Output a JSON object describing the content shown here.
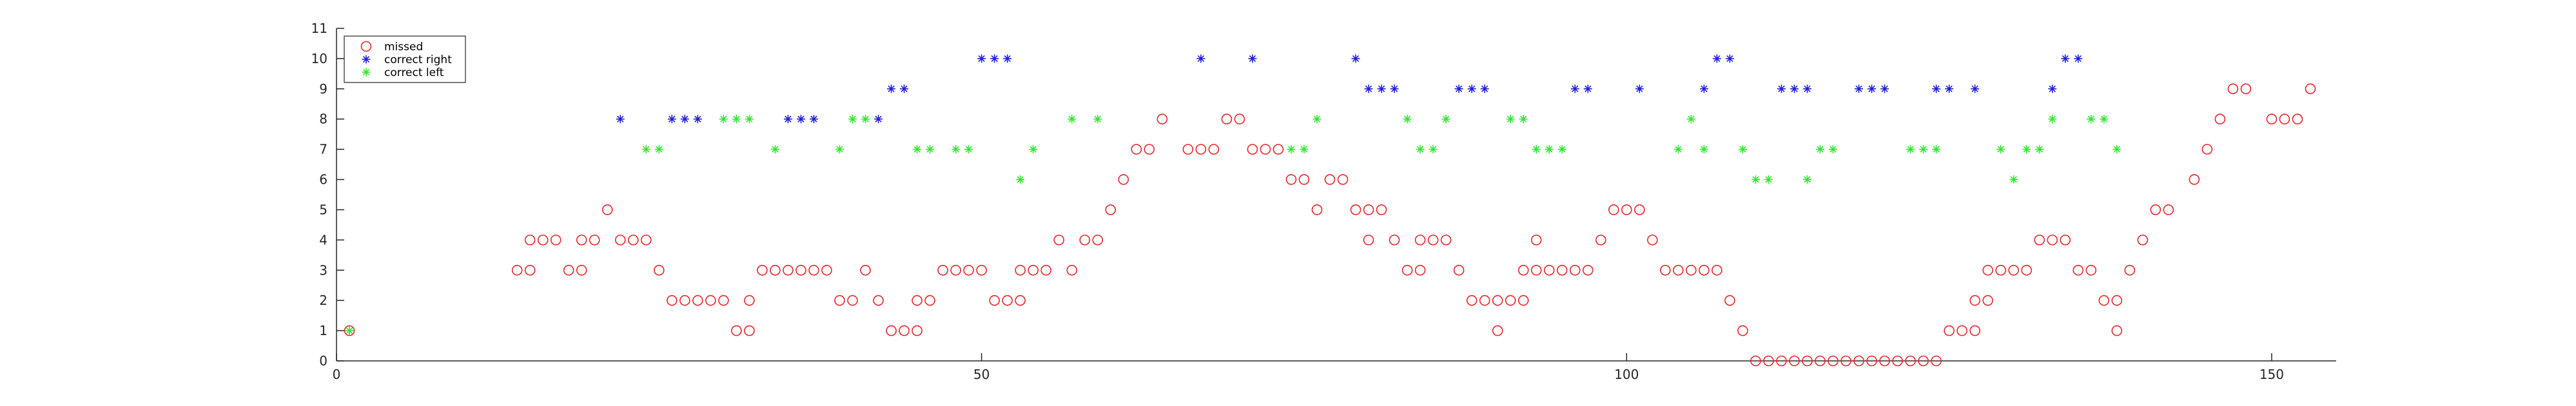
{
  "chart_data": {
    "type": "scatter",
    "title": "",
    "xlabel": "",
    "ylabel": "",
    "xlim": [
      0,
      155
    ],
    "ylim": [
      0,
      11
    ],
    "xticks": [
      0,
      50,
      100,
      150
    ],
    "yticks": [
      0,
      1,
      2,
      3,
      4,
      5,
      6,
      7,
      8,
      9,
      10,
      11
    ],
    "grid": false,
    "legend_position": "top-left",
    "series": [
      {
        "name": "missed",
        "marker": "circle-open",
        "color": "#e8242b",
        "points": [
          [
            1,
            1
          ],
          [
            14,
            3
          ],
          [
            15,
            3
          ],
          [
            15,
            4
          ],
          [
            16,
            4
          ],
          [
            17,
            4
          ],
          [
            18,
            3
          ],
          [
            19,
            3
          ],
          [
            19,
            4
          ],
          [
            20,
            4
          ],
          [
            21,
            5
          ],
          [
            22,
            4
          ],
          [
            23,
            4
          ],
          [
            24,
            4
          ],
          [
            25,
            3
          ],
          [
            26,
            2
          ],
          [
            27,
            2
          ],
          [
            28,
            2
          ],
          [
            29,
            2
          ],
          [
            30,
            2
          ],
          [
            31,
            1
          ],
          [
            32,
            1
          ],
          [
            32,
            2
          ],
          [
            33,
            3
          ],
          [
            34,
            3
          ],
          [
            35,
            3
          ],
          [
            36,
            3
          ],
          [
            37,
            3
          ],
          [
            38,
            3
          ],
          [
            39,
            2
          ],
          [
            40,
            2
          ],
          [
            41,
            3
          ],
          [
            42,
            2
          ],
          [
            43,
            1
          ],
          [
            44,
            1
          ],
          [
            45,
            1
          ],
          [
            45,
            2
          ],
          [
            46,
            2
          ],
          [
            47,
            3
          ],
          [
            48,
            3
          ],
          [
            49,
            3
          ],
          [
            50,
            3
          ],
          [
            51,
            2
          ],
          [
            52,
            2
          ],
          [
            53,
            2
          ],
          [
            53,
            3
          ],
          [
            54,
            3
          ],
          [
            55,
            3
          ],
          [
            56,
            4
          ],
          [
            57,
            3
          ],
          [
            58,
            4
          ],
          [
            59,
            4
          ],
          [
            60,
            5
          ],
          [
            61,
            6
          ],
          [
            62,
            7
          ],
          [
            63,
            7
          ],
          [
            64,
            8
          ],
          [
            66,
            7
          ],
          [
            67,
            7
          ],
          [
            68,
            7
          ],
          [
            69,
            8
          ],
          [
            70,
            8
          ],
          [
            71,
            7
          ],
          [
            72,
            7
          ],
          [
            73,
            7
          ],
          [
            74,
            6
          ],
          [
            75,
            6
          ],
          [
            76,
            5
          ],
          [
            77,
            6
          ],
          [
            78,
            6
          ],
          [
            79,
            5
          ],
          [
            80,
            4
          ],
          [
            80,
            5
          ],
          [
            81,
            5
          ],
          [
            82,
            4
          ],
          [
            83,
            3
          ],
          [
            84,
            3
          ],
          [
            84,
            4
          ],
          [
            85,
            4
          ],
          [
            86,
            4
          ],
          [
            87,
            3
          ],
          [
            88,
            2
          ],
          [
            89,
            2
          ],
          [
            90,
            1
          ],
          [
            90,
            2
          ],
          [
            91,
            2
          ],
          [
            92,
            2
          ],
          [
            92,
            3
          ],
          [
            93,
            3
          ],
          [
            93,
            4
          ],
          [
            94,
            3
          ],
          [
            95,
            3
          ],
          [
            96,
            3
          ],
          [
            97,
            3
          ],
          [
            98,
            4
          ],
          [
            99,
            5
          ],
          [
            100,
            5
          ],
          [
            101,
            5
          ],
          [
            102,
            4
          ],
          [
            103,
            3
          ],
          [
            104,
            3
          ],
          [
            105,
            3
          ],
          [
            106,
            3
          ],
          [
            107,
            3
          ],
          [
            108,
            2
          ],
          [
            109,
            1
          ],
          [
            110,
            0
          ],
          [
            111,
            0
          ],
          [
            112,
            0
          ],
          [
            113,
            0
          ],
          [
            114,
            0
          ],
          [
            115,
            0
          ],
          [
            116,
            0
          ],
          [
            117,
            0
          ],
          [
            118,
            0
          ],
          [
            119,
            0
          ],
          [
            120,
            0
          ],
          [
            121,
            0
          ],
          [
            122,
            0
          ],
          [
            123,
            0
          ],
          [
            124,
            0
          ],
          [
            125,
            1
          ],
          [
            126,
            1
          ],
          [
            127,
            1
          ],
          [
            127,
            2
          ],
          [
            128,
            2
          ],
          [
            128,
            3
          ],
          [
            129,
            3
          ],
          [
            130,
            3
          ],
          [
            131,
            3
          ],
          [
            132,
            4
          ],
          [
            133,
            4
          ],
          [
            134,
            4
          ],
          [
            135,
            3
          ],
          [
            136,
            3
          ],
          [
            137,
            2
          ],
          [
            138,
            1
          ],
          [
            138,
            2
          ],
          [
            139,
            3
          ],
          [
            140,
            4
          ],
          [
            141,
            5
          ],
          [
            142,
            5
          ],
          [
            144,
            6
          ],
          [
            145,
            7
          ],
          [
            146,
            8
          ],
          [
            147,
            9
          ],
          [
            148,
            9
          ],
          [
            150,
            8
          ],
          [
            151,
            8
          ],
          [
            152,
            8
          ],
          [
            153,
            9
          ]
        ]
      },
      {
        "name": "correct right",
        "marker": "asterisk",
        "color": "#1f1fd8",
        "points": [
          [
            22,
            8
          ],
          [
            26,
            8
          ],
          [
            27,
            8
          ],
          [
            28,
            8
          ],
          [
            35,
            8
          ],
          [
            36,
            8
          ],
          [
            37,
            8
          ],
          [
            42,
            8
          ],
          [
            43,
            9
          ],
          [
            44,
            9
          ],
          [
            50,
            10
          ],
          [
            51,
            10
          ],
          [
            52,
            10
          ],
          [
            67,
            10
          ],
          [
            71,
            10
          ],
          [
            79,
            10
          ],
          [
            80,
            9
          ],
          [
            81,
            9
          ],
          [
            82,
            9
          ],
          [
            87,
            9
          ],
          [
            88,
            9
          ],
          [
            89,
            9
          ],
          [
            96,
            9
          ],
          [
            97,
            9
          ],
          [
            101,
            9
          ],
          [
            106,
            9
          ],
          [
            107,
            10
          ],
          [
            108,
            10
          ],
          [
            112,
            9
          ],
          [
            113,
            9
          ],
          [
            114,
            9
          ],
          [
            118,
            9
          ],
          [
            119,
            9
          ],
          [
            120,
            9
          ],
          [
            124,
            9
          ],
          [
            125,
            9
          ],
          [
            127,
            9
          ],
          [
            133,
            9
          ],
          [
            134,
            10
          ],
          [
            135,
            10
          ]
        ]
      },
      {
        "name": "correct left",
        "marker": "asterisk",
        "color": "#2ee82e",
        "points": [
          [
            1,
            1
          ],
          [
            24,
            7
          ],
          [
            25,
            7
          ],
          [
            30,
            8
          ],
          [
            31,
            8
          ],
          [
            32,
            8
          ],
          [
            34,
            7
          ],
          [
            39,
            7
          ],
          [
            40,
            8
          ],
          [
            41,
            8
          ],
          [
            45,
            7
          ],
          [
            46,
            7
          ],
          [
            48,
            7
          ],
          [
            49,
            7
          ],
          [
            53,
            6
          ],
          [
            54,
            7
          ],
          [
            57,
            8
          ],
          [
            59,
            8
          ],
          [
            74,
            7
          ],
          [
            75,
            7
          ],
          [
            76,
            8
          ],
          [
            83,
            8
          ],
          [
            84,
            7
          ],
          [
            85,
            7
          ],
          [
            86,
            8
          ],
          [
            91,
            8
          ],
          [
            92,
            8
          ],
          [
            93,
            7
          ],
          [
            94,
            7
          ],
          [
            95,
            7
          ],
          [
            104,
            7
          ],
          [
            105,
            8
          ],
          [
            106,
            7
          ],
          [
            109,
            7
          ],
          [
            110,
            6
          ],
          [
            111,
            6
          ],
          [
            114,
            6
          ],
          [
            115,
            7
          ],
          [
            116,
            7
          ],
          [
            122,
            7
          ],
          [
            123,
            7
          ],
          [
            124,
            7
          ],
          [
            129,
            7
          ],
          [
            130,
            6
          ],
          [
            131,
            7
          ],
          [
            132,
            7
          ],
          [
            133,
            8
          ],
          [
            136,
            8
          ],
          [
            137,
            8
          ],
          [
            138,
            7
          ]
        ]
      }
    ]
  }
}
